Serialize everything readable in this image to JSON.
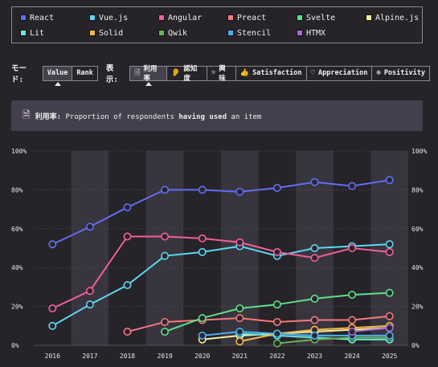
{
  "legend": [
    {
      "label": "React",
      "color": "#5f6ff0"
    },
    {
      "label": "Vue.js",
      "color": "#5ad8f0"
    },
    {
      "label": "Angular",
      "color": "#f0609a"
    },
    {
      "label": "Preact",
      "color": "#f47a7a"
    },
    {
      "label": "Svelte",
      "color": "#5de08a"
    },
    {
      "label": "Alpine.js",
      "color": "#f8f0a0"
    },
    {
      "label": "Lit",
      "color": "#64e8e0"
    },
    {
      "label": "Solid",
      "color": "#f5b84a"
    },
    {
      "label": "Qwik",
      "color": "#6ab452"
    },
    {
      "label": "Stencil",
      "color": "#4ab0f0"
    },
    {
      "label": "HTMX",
      "color": "#a86ad8"
    }
  ],
  "controls": {
    "mode_label": "モード:",
    "mode_options": [
      {
        "label": "Value",
        "active": true
      },
      {
        "label": "Rank",
        "active": false
      }
    ],
    "display_label": "表示:",
    "display_options": [
      {
        "label": "利用率",
        "icon": "document-icon",
        "active": true
      },
      {
        "label": "認知度",
        "icon": "ear-icon",
        "active": false
      },
      {
        "label": "興味",
        "icon": "lightbulb-icon",
        "active": false
      },
      {
        "label": "Satisfaction",
        "icon": "thumbs-up-icon",
        "active": false
      },
      {
        "label": "Appreciation",
        "icon": "heart-icon",
        "active": false
      },
      {
        "label": "Positivity",
        "icon": "plus-circle-icon",
        "active": false
      }
    ]
  },
  "description": {
    "label": "利用率:",
    "text_before": "Proportion of respondents",
    "text_bold": "having used",
    "text_after": "an item"
  },
  "chart_data": {
    "type": "line",
    "x": [
      2016,
      2017,
      2018,
      2019,
      2020,
      2021,
      2022,
      2023,
      2024,
      2025
    ],
    "ylim": [
      0,
      100
    ],
    "y_ticks": [
      "0%",
      "20%",
      "40%",
      "60%",
      "80%",
      "100%"
    ],
    "grid": true,
    "series": [
      {
        "name": "React",
        "color": "#5f6ff0",
        "values": [
          52,
          61,
          71,
          80,
          80,
          79,
          81,
          84,
          82,
          85
        ]
      },
      {
        "name": "Vue.js",
        "color": "#5ad8f0",
        "values": [
          10,
          21,
          31,
          46,
          48,
          51,
          46,
          50,
          51,
          52
        ]
      },
      {
        "name": "Angular",
        "color": "#f0609a",
        "values": [
          19,
          28,
          56,
          56,
          55,
          53,
          48,
          45,
          50,
          48
        ]
      },
      {
        "name": "Preact",
        "color": "#f47a7a",
        "values": [
          null,
          null,
          7,
          12,
          13,
          14,
          12,
          13,
          13,
          15
        ]
      },
      {
        "name": "Svelte",
        "color": "#5de08a",
        "values": [
          null,
          null,
          null,
          7,
          14,
          19,
          21,
          24,
          26,
          27
        ]
      },
      {
        "name": "Alpine.js",
        "color": "#f8f0a0",
        "values": [
          null,
          null,
          null,
          null,
          3,
          5,
          6,
          7,
          8,
          9
        ]
      },
      {
        "name": "Lit",
        "color": "#64e8e0",
        "values": [
          null,
          null,
          null,
          null,
          null,
          6,
          5,
          4,
          3,
          3
        ]
      },
      {
        "name": "Solid",
        "color": "#f5b84a",
        "values": [
          null,
          null,
          null,
          null,
          null,
          2,
          6,
          8,
          9,
          10
        ]
      },
      {
        "name": "Qwik",
        "color": "#6ab452",
        "values": [
          null,
          null,
          null,
          null,
          null,
          null,
          1,
          3,
          4,
          4
        ]
      },
      {
        "name": "Stencil",
        "color": "#4ab0f0",
        "values": [
          null,
          null,
          null,
          null,
          5,
          7,
          6,
          5,
          5,
          5
        ]
      },
      {
        "name": "HTMX",
        "color": "#a86ad8",
        "values": [
          null,
          null,
          null,
          null,
          null,
          null,
          null,
          null,
          7,
          9
        ]
      }
    ]
  }
}
